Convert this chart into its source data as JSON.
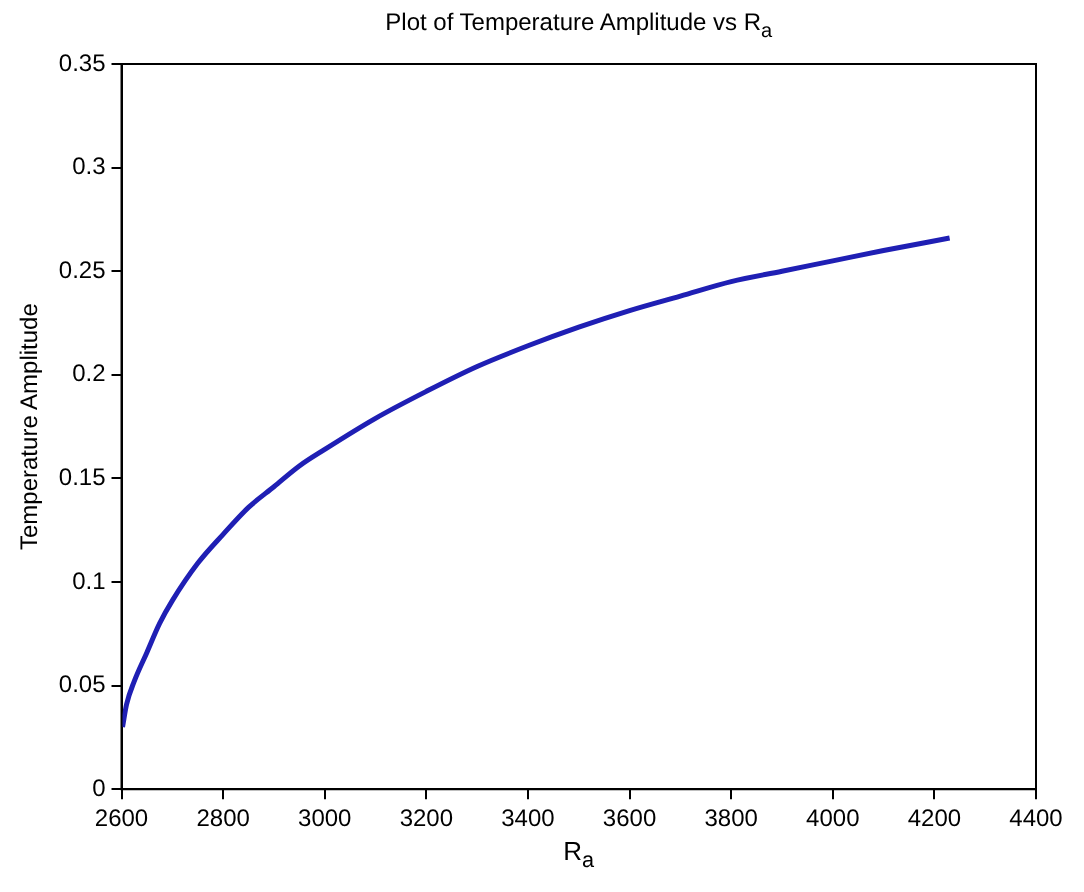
{
  "chart_data": {
    "type": "line",
    "title": "Plot of Temperature Amplitude vs R$_{a}$",
    "xlabel": "R$_{a}$",
    "ylabel": "Temperature Amplitude",
    "x": [
      2602,
      2610,
      2625,
      2650,
      2675,
      2700,
      2750,
      2800,
      2850,
      2900,
      2950,
      3000,
      3100,
      3200,
      3300,
      3400,
      3500,
      3600,
      3700,
      3800,
      3900,
      4000,
      4100,
      4230
    ],
    "series": [
      {
        "color": "#1f1fb4",
        "values": [
          0.03,
          0.041,
          0.052,
          0.066,
          0.08,
          0.091,
          0.109,
          0.123,
          0.136,
          0.146,
          0.156,
          0.164,
          0.179,
          0.192,
          0.204,
          0.214,
          0.223,
          0.231,
          0.238,
          0.245,
          0.25,
          0.255,
          0.26,
          0.266
        ]
      }
    ],
    "xlim": [
      2600,
      4400
    ],
    "xticks": [
      2600,
      2800,
      3000,
      3200,
      3400,
      3600,
      3800,
      4000,
      4200,
      4400
    ],
    "ylim": [
      0,
      0.35
    ],
    "yticks": [
      0,
      0.05,
      0.1,
      0.15,
      0.2,
      0.25,
      0.3,
      0.35
    ],
    "marker": "none",
    "line_style": "solid",
    "legend": false
  }
}
